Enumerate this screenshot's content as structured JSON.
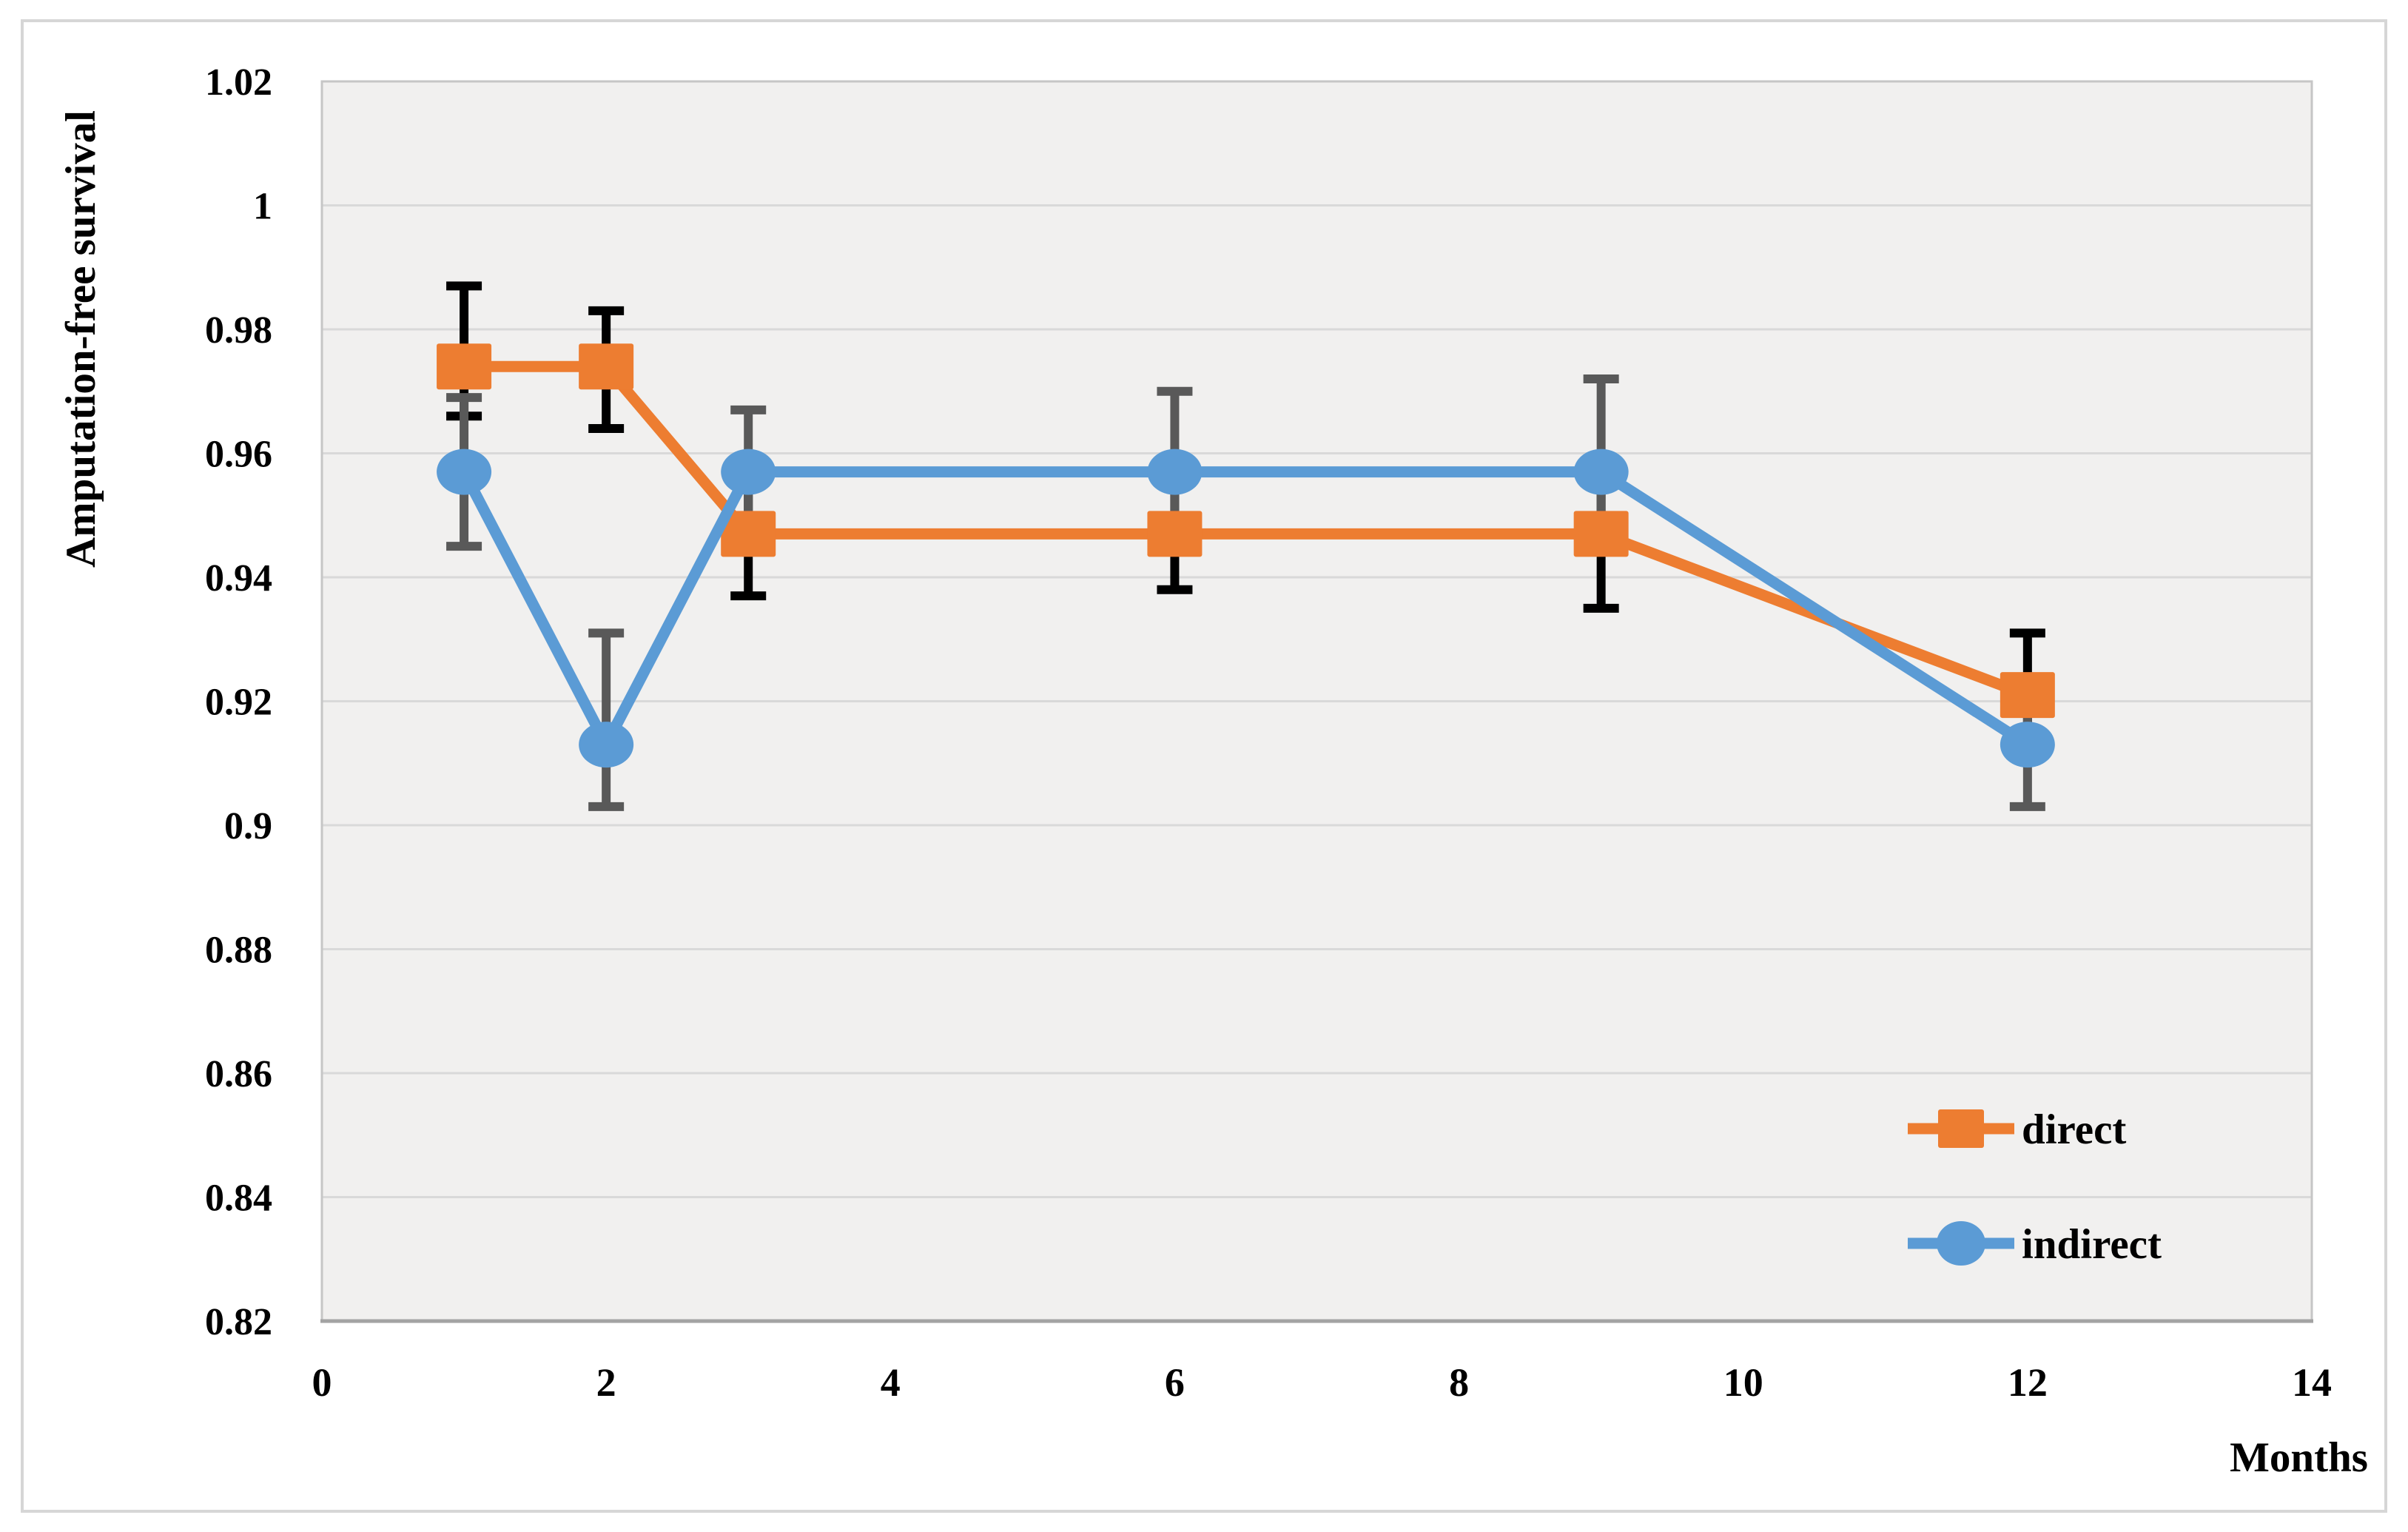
{
  "chart_data": {
    "type": "line",
    "title": "",
    "xlabel": "Months",
    "ylabel": "Amputation-free survival",
    "xlim": [
      0,
      14
    ],
    "ylim": [
      0.82,
      1.02
    ],
    "x_ticks": [
      0,
      2,
      4,
      6,
      8,
      10,
      12,
      14
    ],
    "y_ticks": [
      {
        "value": 1.02,
        "label": "1.02"
      },
      {
        "value": 1.0,
        "label": "1"
      },
      {
        "value": 0.98,
        "label": "0.98"
      },
      {
        "value": 0.96,
        "label": "0.96"
      },
      {
        "value": 0.94,
        "label": "0.94"
      },
      {
        "value": 0.92,
        "label": "0.92"
      },
      {
        "value": 0.9,
        "label": "0.9"
      },
      {
        "value": 0.88,
        "label": "0.88"
      },
      {
        "value": 0.86,
        "label": "0.86"
      },
      {
        "value": 0.84,
        "label": "0.84"
      },
      {
        "value": 0.82,
        "label": "0.82"
      }
    ],
    "grid": "horizontal",
    "legend_position": "bottom-right",
    "series": [
      {
        "name": "direct",
        "color": "#ED7D31",
        "marker": "square",
        "error_color": "#000000",
        "x": [
          1,
          2,
          3,
          6,
          9,
          12
        ],
        "y": [
          0.974,
          0.974,
          0.947,
          0.947,
          0.947,
          0.921
        ],
        "err_high": [
          0.987,
          0.983,
          0.957,
          0.956,
          0.957,
          0.931
        ],
        "err_low": [
          0.966,
          0.964,
          0.937,
          0.938,
          0.935,
          0.911
        ]
      },
      {
        "name": "indirect",
        "color": "#5B9BD5",
        "marker": "circle",
        "error_color": "#595959",
        "x": [
          1,
          2,
          3,
          6,
          9,
          12
        ],
        "y": [
          0.957,
          0.913,
          0.957,
          0.957,
          0.957,
          0.913
        ],
        "err_high": [
          0.969,
          0.931,
          0.967,
          0.97,
          0.972,
          0.923
        ],
        "err_low": [
          0.945,
          0.903,
          0.947,
          0.948,
          0.947,
          0.903
        ]
      }
    ],
    "colors": {
      "plot_background": "#f1f0ef",
      "gridline": "#d9d9d9",
      "plot_border": "#c6c6c6",
      "axis_line": "#a3a3a3",
      "figure_border": "#d6d6d6",
      "text": "#000000"
    }
  }
}
